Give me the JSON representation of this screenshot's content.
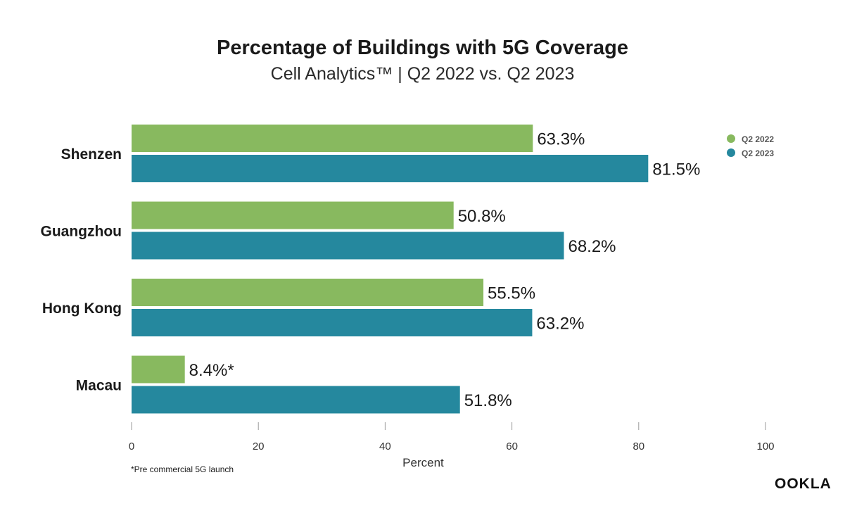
{
  "title": "Percentage of Buildings with 5G Coverage",
  "subtitle": "Cell Analytics™ | Q2 2022 vs. Q2 2023",
  "footnote": "*Pre commercial 5G launch",
  "logo": "OOKLA",
  "colors": {
    "q2_2022": "#88b95f",
    "q2_2023": "#25889e",
    "axis": "#9a9a9a",
    "text": "#1a1a1a"
  },
  "chart_data": {
    "type": "bar",
    "orientation": "horizontal",
    "categories": [
      "Shenzen",
      "Guangzhou",
      "Hong Kong",
      "Macau"
    ],
    "series": [
      {
        "name": "Q2 2022",
        "values": [
          63.3,
          50.8,
          55.5,
          8.4
        ],
        "labels": [
          "63.3%",
          "50.8%",
          "55.5%",
          "8.4%*"
        ]
      },
      {
        "name": "Q2 2023",
        "values": [
          81.5,
          68.2,
          63.2,
          51.8
        ],
        "labels": [
          "81.5%",
          "68.2%",
          "63.2%",
          "51.8%"
        ]
      }
    ],
    "xlabel": "Percent",
    "ylabel": "",
    "xlim": [
      0,
      100
    ],
    "xticks": [
      "0",
      "20",
      "40",
      "60",
      "80",
      "100"
    ],
    "legend": "top-right",
    "grid": false
  }
}
